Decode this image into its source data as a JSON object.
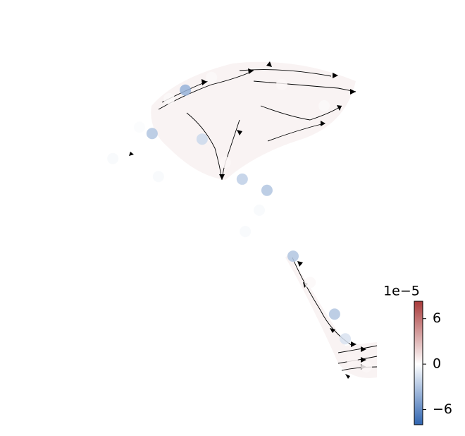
{
  "chart_data": {
    "type": "scatter",
    "xlim": [
      0,
      100
    ],
    "ylim": [
      0,
      100
    ],
    "series": [
      {
        "x": [
          16.9,
          29.0,
          35.1,
          49.7,
          58.7,
          68.2,
          83.3,
          87.2,
          2.6,
          19.2,
          55.9,
          50.8,
          12.3,
          23.1,
          38.5,
          64.1,
          79.5,
          43.6,
          74.4,
          89.7,
          94.9
        ],
        "y": [
          77.5,
          89.1,
          76.0,
          65.3,
          62.3,
          44.7,
          29.2,
          22.6,
          70.8,
          66.0,
          57.0,
          51.3,
          79.2,
          86.8,
          92.5,
          90.6,
          84.9,
          69.8,
          37.7,
          17.0,
          15.1
        ],
        "values": [
          -3,
          -4,
          -2,
          -2.5,
          -3,
          -3,
          -3,
          -1.5,
          -0.3,
          -0.3,
          -0.3,
          -0.3,
          -0.2,
          0.3,
          0.3,
          0.4,
          0.3,
          0.4,
          0.3,
          0.5,
          0.4
        ]
      }
    ],
    "colorbar": {
      "clim": [
        -8,
        8.3
      ],
      "offset_label": "1e−5",
      "ticks": [
        6,
        0,
        {
          "value": -6,
          "label": "−6"
        }
      ],
      "colors": [
        "#2f64b0",
        "#ffffff",
        "#a83a3a"
      ]
    }
  }
}
